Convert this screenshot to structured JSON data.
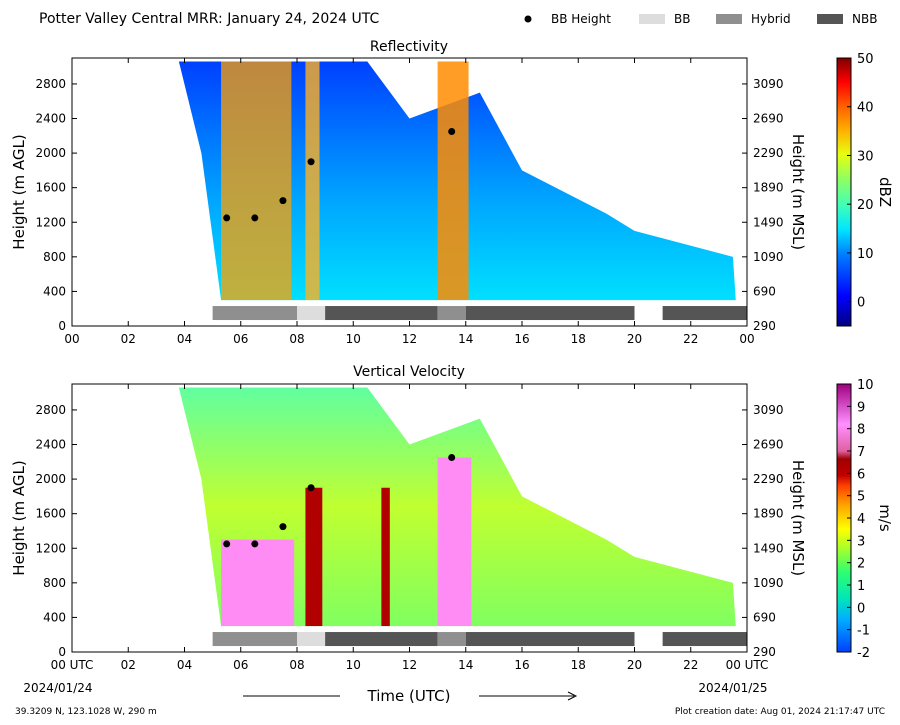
{
  "header": {
    "title": "Potter Valley Central MRR:  January 24, 2024 UTC",
    "legend": [
      {
        "label": "BB Height",
        "kind": "dot",
        "color": "#000000"
      },
      {
        "label": "BB",
        "kind": "box",
        "color": "#dddddd"
      },
      {
        "label": "Hybrid",
        "kind": "box",
        "color": "#8f8f8f"
      },
      {
        "label": "NBB",
        "kind": "box",
        "color": "#555555"
      }
    ]
  },
  "footer": {
    "coords": "39.3209 N, 123.1028 W, 290 m",
    "creation": "Plot creation date: Aug 01, 2024 21:17:47 UTC",
    "xlabel": "Time (UTC)",
    "date_start": "2024/01/24",
    "date_end": "2024/01/25"
  },
  "chart_data": [
    {
      "type": "heatmap",
      "title": "Reflectivity",
      "xlabel": "Time (UTC)",
      "ylabel": "Height (m AGL)",
      "y2label": "Height (m MSL)",
      "colorbar_label": "dBZ",
      "xlim": [
        0,
        24
      ],
      "ylim": [
        0,
        3100
      ],
      "xticks": [
        "00",
        "02",
        "04",
        "06",
        "08",
        "10",
        "12",
        "14",
        "16",
        "18",
        "20",
        "22",
        "00"
      ],
      "yticks": [
        0,
        400,
        800,
        1200,
        1600,
        2000,
        2400,
        2800
      ],
      "y2ticks": [
        290,
        690,
        1090,
        1490,
        1890,
        2290,
        2690,
        3090
      ],
      "colorbar": {
        "min": -5,
        "max": 50,
        "ticks": [
          0,
          10,
          20,
          30,
          40,
          50
        ]
      },
      "bb_height": [
        {
          "time": 5.5,
          "height": 1250
        },
        {
          "time": 6.5,
          "height": 1250
        },
        {
          "time": 7.5,
          "height": 1450
        },
        {
          "time": 8.5,
          "height": 1900
        },
        {
          "time": 13.5,
          "height": 2250
        }
      ],
      "bb_type": [
        {
          "start": 5,
          "end": 8,
          "type": "Hybrid"
        },
        {
          "start": 8,
          "end": 9,
          "type": "BB"
        },
        {
          "start": 9,
          "end": 13,
          "type": "NBB"
        },
        {
          "start": 13,
          "end": 14,
          "type": "Hybrid"
        },
        {
          "start": 14,
          "end": 20,
          "type": "NBB"
        },
        {
          "start": 21,
          "end": 24,
          "type": "NBB"
        }
      ]
    },
    {
      "type": "heatmap",
      "title": "Vertical Velocity",
      "xlabel": "Time (UTC)",
      "ylabel": "Height (m AGL)",
      "y2label": "Height (m MSL)",
      "colorbar_label": "m/s",
      "xlim": [
        0,
        24
      ],
      "ylim": [
        0,
        3100
      ],
      "xticks": [
        "00 UTC",
        "02",
        "04",
        "06",
        "08",
        "10",
        "12",
        "14",
        "16",
        "18",
        "20",
        "22",
        "00 UTC"
      ],
      "yticks": [
        0,
        400,
        800,
        1200,
        1600,
        2000,
        2400,
        2800
      ],
      "y2ticks": [
        290,
        690,
        1090,
        1490,
        1890,
        2290,
        2690,
        3090
      ],
      "colorbar": {
        "min": -2,
        "max": 10,
        "ticks": [
          -2,
          -1,
          0,
          1,
          2,
          3,
          4,
          5,
          6,
          7,
          8,
          9,
          10
        ]
      },
      "bb_height": [
        {
          "time": 5.5,
          "height": 1250
        },
        {
          "time": 6.5,
          "height": 1250
        },
        {
          "time": 7.5,
          "height": 1450
        },
        {
          "time": 8.5,
          "height": 1900
        },
        {
          "time": 13.5,
          "height": 2250
        }
      ],
      "bb_type": [
        {
          "start": 5,
          "end": 8,
          "type": "Hybrid"
        },
        {
          "start": 8,
          "end": 9,
          "type": "BB"
        },
        {
          "start": 9,
          "end": 13,
          "type": "NBB"
        },
        {
          "start": 13,
          "end": 14,
          "type": "Hybrid"
        },
        {
          "start": 14,
          "end": 20,
          "type": "NBB"
        },
        {
          "start": 21,
          "end": 24,
          "type": "NBB"
        }
      ]
    }
  ]
}
